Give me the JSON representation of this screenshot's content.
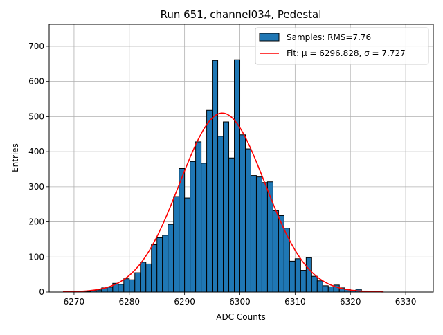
{
  "chart_data": {
    "type": "bar",
    "title": "Run 651, channel034, Pedestal",
    "xlabel": "ADC Counts",
    "ylabel": "Entries",
    "xlim": [
      6265.5,
      6335.0
    ],
    "ylim": [
      0,
      763
    ],
    "xticks": [
      6270,
      6280,
      6290,
      6300,
      6310,
      6320,
      6330
    ],
    "yticks": [
      0,
      100,
      200,
      300,
      400,
      500,
      600,
      700
    ],
    "grid": true,
    "legend_position": "top-right",
    "histogram": {
      "name": "Samples: RMS=7.76",
      "color": "#1f77b4",
      "bin_width": 1,
      "bin_starts": [
        6271,
        6272,
        6273,
        6274,
        6275,
        6276,
        6277,
        6278,
        6279,
        6280,
        6281,
        6282,
        6283,
        6284,
        6285,
        6286,
        6287,
        6288,
        6289,
        6290,
        6291,
        6292,
        6293,
        6294,
        6295,
        6296,
        6297,
        6298,
        6299,
        6300,
        6301,
        6302,
        6303,
        6304,
        6305,
        6306,
        6307,
        6308,
        6309,
        6310,
        6311,
        6312,
        6313,
        6314,
        6315,
        6316,
        6317,
        6318,
        6319,
        6320,
        6321,
        6322,
        6323
      ],
      "values": [
        2,
        2,
        5,
        6,
        12,
        14,
        25,
        22,
        38,
        35,
        55,
        85,
        80,
        135,
        155,
        162,
        193,
        272,
        352,
        268,
        372,
        428,
        367,
        518,
        660,
        444,
        485,
        382,
        662,
        448,
        408,
        332,
        328,
        312,
        314,
        232,
        218,
        182,
        88,
        95,
        62,
        98,
        45,
        32,
        18,
        15,
        20,
        12,
        8,
        5,
        8,
        3,
        2
      ]
    },
    "fit": {
      "name": "Fit: μ = 6296.828, σ = 7.727",
      "color": "#ff0000",
      "mu": 6296.828,
      "sigma": 7.727,
      "amplitude": 510,
      "x_range": [
        6268,
        6326
      ]
    }
  }
}
